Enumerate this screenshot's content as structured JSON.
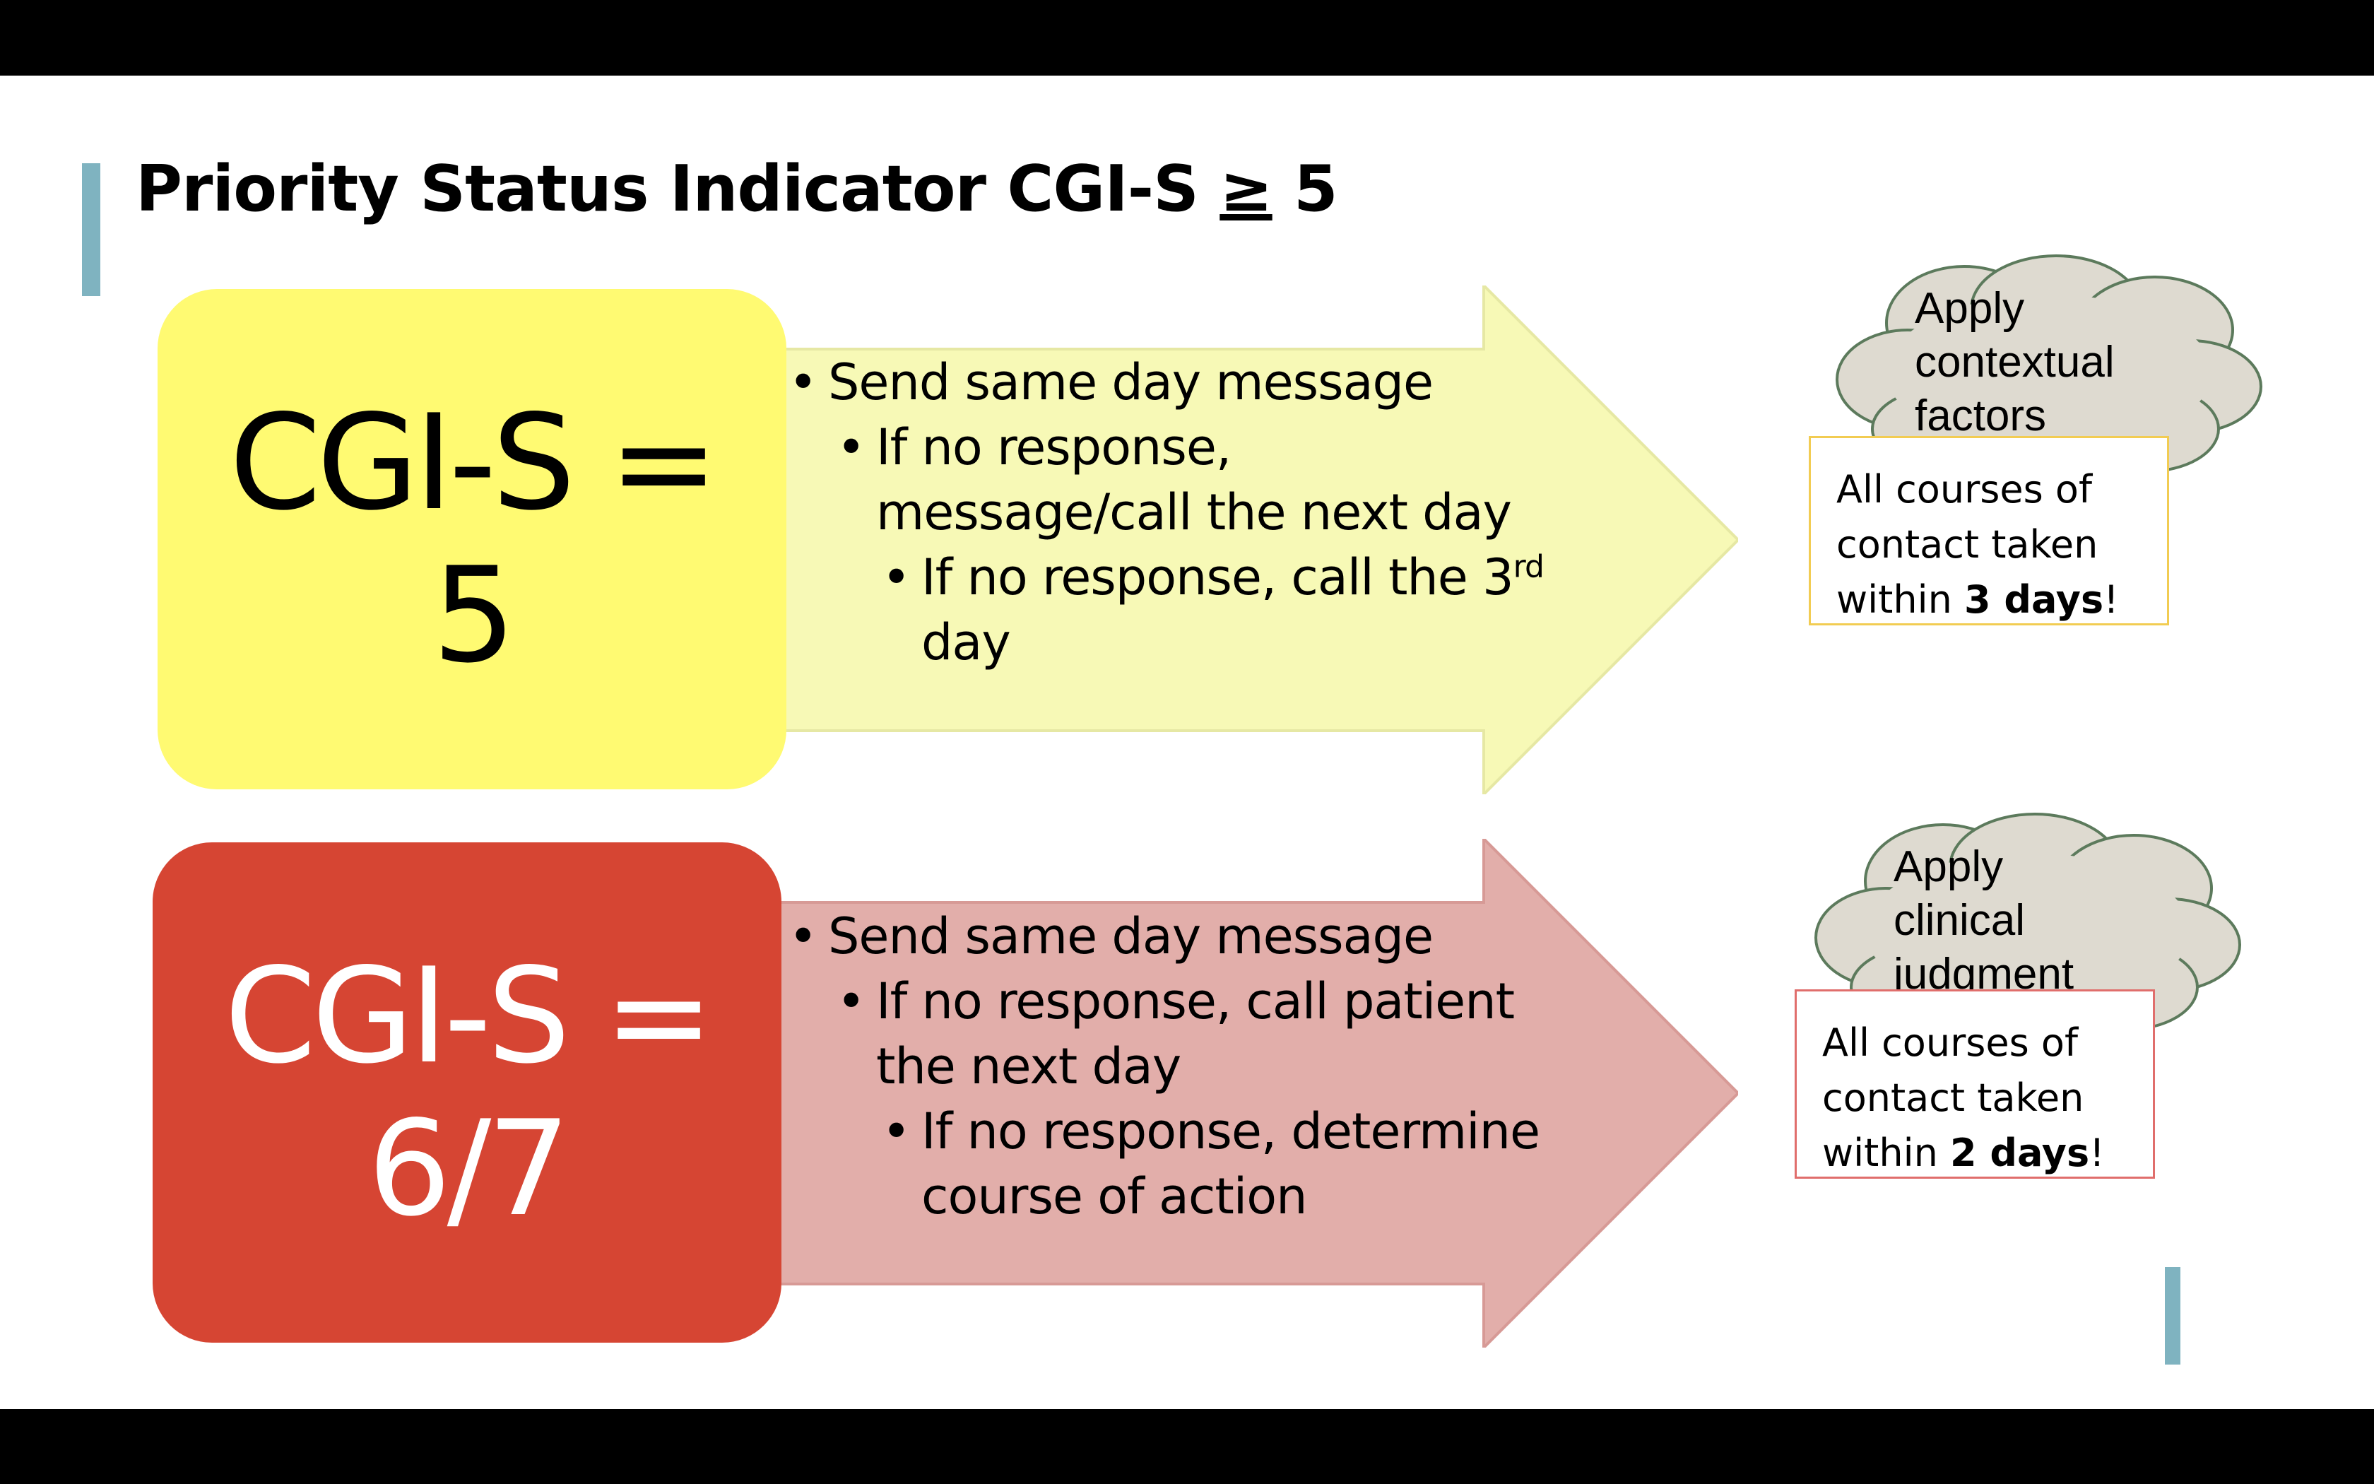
{
  "slide": {
    "title": "Priority Status Indicator CGI-S",
    "title_symbol": "≥",
    "title_value": "5"
  },
  "cards": [
    {
      "status_line1": "CGI-S =",
      "status_line2": "5",
      "steps": {
        "l1": "Send same day message",
        "l2a": "If no response,",
        "l2b": "message/call the next day",
        "l3a": "If no response, call the 3",
        "l3a_sup": "rd",
        "l3b": "day"
      },
      "cloud": {
        "line1": "Apply",
        "line2": "contextual",
        "line3": "factors"
      },
      "note": {
        "line1": "All courses of",
        "line2": "contact taken",
        "line3_prefix": "within ",
        "line3_bold": "3 days",
        "line3_suffix": "!"
      },
      "colors": {
        "box": "#fffa72",
        "arrow": "#f7f9b6",
        "note_border": "#f2cc52"
      }
    },
    {
      "status_line1": "CGI-S =",
      "status_line2": "6/7",
      "steps": {
        "l1": "Send same day message",
        "l2a": "If no response, call patient",
        "l2b": "the next day",
        "l3a": "If no response, determine",
        "l3b": "course of action"
      },
      "cloud": {
        "line1": "Apply",
        "line2": "clinical",
        "line3": "judgment"
      },
      "note": {
        "line1": "All courses of",
        "line2": "contact taken",
        "line3_prefix": "within ",
        "line3_bold": "2 days",
        "line3_suffix": "!"
      },
      "colors": {
        "box": "#d64533",
        "arrow": "#e2aeaa",
        "note_border": "#e06e6c"
      }
    }
  ],
  "accent_color": "#7fb3c0",
  "cloud_color": "#dedad0"
}
